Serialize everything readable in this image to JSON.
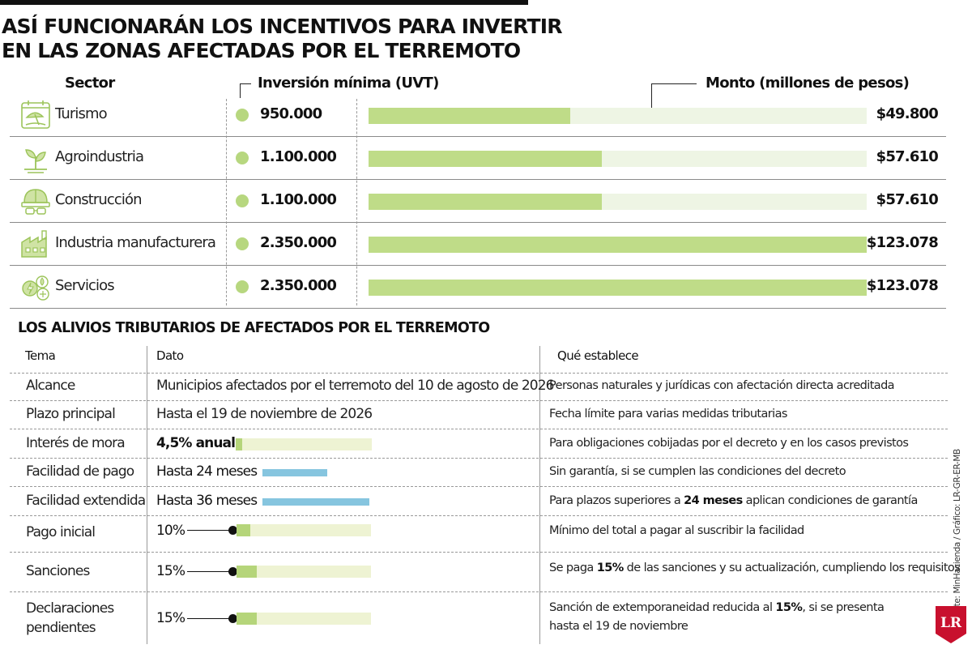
{
  "title_line1": "ASÍ FUNCIONARÁN LOS INCENTIVOS PARA INVERTIR",
  "title_line2": "EN LAS ZONAS AFECTADAS POR EL TERREMOTO",
  "headers": {
    "sector": "Sector",
    "uvt": "Inversión mínima (UVT)",
    "monto": "Monto (millones de pesos)"
  },
  "colors": {
    "bar": "#bfdc88",
    "track": "#eef5e4",
    "dot": "#b7d77f",
    "blue": "#86c5df",
    "icon": "#9cc45a",
    "logo": "#c8102e"
  },
  "chart_data": {
    "type": "bar",
    "categories": [
      "Turismo",
      "Agroindustria",
      "Construcción",
      "Industria manufacturera",
      "Servicios"
    ],
    "series": [
      {
        "name": "Monto (millones de pesos)",
        "values": [
          49800,
          57610,
          57610,
          123078,
          123078
        ]
      },
      {
        "name": "Inversión mínima (UVT)",
        "values": [
          950000,
          1100000,
          1100000,
          2350000,
          2350000
        ]
      }
    ],
    "ylim": [
      0,
      123078
    ]
  },
  "sectors": [
    {
      "name": "Turismo",
      "uvt": "950.000",
      "value": "$49.800",
      "icon": "beach-umbrella-icon"
    },
    {
      "name": "Agroindustria",
      "uvt": "1.100.000",
      "value": "$57.610",
      "icon": "sprout-icon"
    },
    {
      "name": "Construcción",
      "uvt": "1.100.000",
      "value": "$57.610",
      "icon": "hardhat-icon"
    },
    {
      "name": "Industria manufacturera",
      "uvt": "2.350.000",
      "value": "$123.078",
      "icon": "factory-icon"
    },
    {
      "name": "Servicios",
      "uvt": "2.350.000",
      "value": "$123.078",
      "icon": "utilities-icon"
    }
  ],
  "subtitle": "LOS ALIVIOS TRIBUTARIOS DE AFECTADOS POR EL TERREMOTO",
  "table_headers": {
    "tema": "Tema",
    "dato": "Dato",
    "que": "Qué establece"
  },
  "rows": {
    "alcance": {
      "tema": "Alcance",
      "dato": "Municipios afectados por el terremoto del 10 de agosto de 2026",
      "que": "Personas naturales y jurídicas con afectación directa acreditada"
    },
    "plazo": {
      "tema": "Plazo principal",
      "dato": "Hasta el 19 de noviembre de 2026",
      "que": "Fecha límite para varias medidas tributarias"
    },
    "interes": {
      "tema": "Interés de mora",
      "dato": "4,5% anual",
      "que": "Para obligaciones cobijadas por el decreto y en los casos previstos",
      "fraction": 0.045
    },
    "facilidad": {
      "tema": "Facilidad de pago",
      "dato": "Hasta 24 meses",
      "que": "Sin garantía, si se cumplen las condiciones del decreto",
      "months": 24
    },
    "extendida": {
      "tema": "Facilidad extendida",
      "dato": "Hasta 36 meses",
      "que_a": "Para plazos superiores a",
      "que_b": "24 meses",
      "que_c": "aplican condiciones de garantía",
      "months": 36
    },
    "pago": {
      "tema": "Pago inicial",
      "dato": "10%",
      "que": "Mínimo del total a pagar al suscribir la facilidad",
      "fraction": 0.1
    },
    "sanciones": {
      "tema": "Sanciones",
      "dato": "15%",
      "que_a": "Se paga",
      "que_b": "15%",
      "que_c": "de las sanciones y su actualización, cumpliendo los requisitos",
      "fraction": 0.15
    },
    "declaraciones": {
      "tema_1": "Declaraciones",
      "tema_2": "pendientes",
      "dato": "15%",
      "que_1a": "Sanción de extemporaneidad reducida al",
      "que_1b": "15%",
      "que_1c": ", si se presenta",
      "que_2": "hasta el 19 de noviembre",
      "fraction": 0.15
    }
  },
  "source": "Fuente: MinHacienda / Gráfico: LR-GR-ER-MB",
  "logo_text": "LR"
}
